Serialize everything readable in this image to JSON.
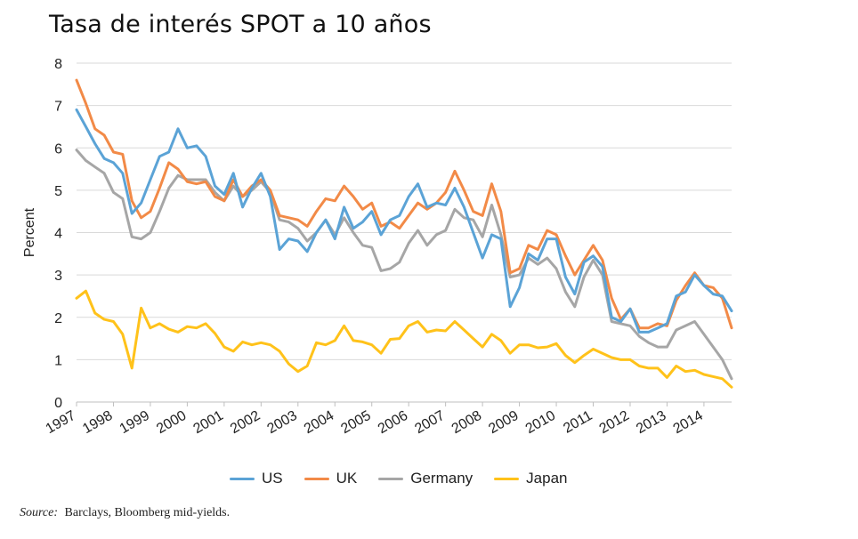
{
  "title": "Tasa de interés SPOT a 10 años",
  "source": {
    "label": "Source:",
    "text": "Barclays, Bloomberg mid-yields."
  },
  "colors": {
    "US": "#5ba3d6",
    "UK": "#f28a47",
    "Germany": "#a6a6a6",
    "Japan": "#ffc21a",
    "grid": "#d9d9d9"
  },
  "chart_data": {
    "type": "line",
    "title": "Tasa de interés SPOT a 10 años",
    "xlabel": "",
    "ylabel": "Percent",
    "ylim": [
      0,
      8
    ],
    "yticks": [
      0,
      1,
      2,
      3,
      4,
      5,
      6,
      7,
      8
    ],
    "xlim": [
      1997,
      2014.75
    ],
    "xticks": [
      "1997",
      "1998",
      "1999",
      "2000",
      "2001",
      "2002",
      "2003",
      "2004",
      "2005",
      "2006",
      "2007",
      "2008",
      "2009",
      "2010",
      "2011",
      "2012",
      "2013",
      "2014"
    ],
    "grid": true,
    "legend_position": "bottom",
    "x": [
      1997.0,
      1997.25,
      1997.5,
      1997.75,
      1998.0,
      1998.25,
      1998.5,
      1998.75,
      1999.0,
      1999.25,
      1999.5,
      1999.75,
      2000.0,
      2000.25,
      2000.5,
      2000.75,
      2001.0,
      2001.25,
      2001.5,
      2001.75,
      2002.0,
      2002.25,
      2002.5,
      2002.75,
      2003.0,
      2003.25,
      2003.5,
      2003.75,
      2004.0,
      2004.25,
      2004.5,
      2004.75,
      2005.0,
      2005.25,
      2005.5,
      2005.75,
      2006.0,
      2006.25,
      2006.5,
      2006.75,
      2007.0,
      2007.25,
      2007.5,
      2007.75,
      2008.0,
      2008.25,
      2008.5,
      2008.75,
      2009.0,
      2009.25,
      2009.5,
      2009.75,
      2010.0,
      2010.25,
      2010.5,
      2010.75,
      2011.0,
      2011.25,
      2011.5,
      2011.75,
      2012.0,
      2012.25,
      2012.5,
      2012.75,
      2013.0,
      2013.25,
      2013.5,
      2013.75,
      2014.0,
      2014.25,
      2014.5,
      2014.75
    ],
    "series": [
      {
        "name": "US",
        "values": [
          6.9,
          6.5,
          6.1,
          5.75,
          5.65,
          5.4,
          4.45,
          4.7,
          5.25,
          5.8,
          5.9,
          6.45,
          6.0,
          6.05,
          5.8,
          5.1,
          4.9,
          5.4,
          4.6,
          5.05,
          5.4,
          4.85,
          3.6,
          3.85,
          3.8,
          3.55,
          4.0,
          4.3,
          3.85,
          4.6,
          4.1,
          4.25,
          4.5,
          3.95,
          4.3,
          4.4,
          4.85,
          5.15,
          4.6,
          4.7,
          4.65,
          5.05,
          4.6,
          4.0,
          3.4,
          3.95,
          3.85,
          2.25,
          2.7,
          3.5,
          3.35,
          3.85,
          3.85,
          2.95,
          2.55,
          3.3,
          3.45,
          3.2,
          2.0,
          1.9,
          2.2,
          1.65,
          1.65,
          1.75,
          1.85,
          2.5,
          2.6,
          3.0,
          2.75,
          2.55,
          2.5,
          2.15
        ]
      },
      {
        "name": "UK",
        "values": [
          7.6,
          7.05,
          6.45,
          6.3,
          5.9,
          5.85,
          4.75,
          4.35,
          4.5,
          5.05,
          5.65,
          5.5,
          5.2,
          5.15,
          5.2,
          4.85,
          4.75,
          5.25,
          4.85,
          5.1,
          5.25,
          5.0,
          4.4,
          4.35,
          4.3,
          4.15,
          4.5,
          4.8,
          4.75,
          5.1,
          4.85,
          4.55,
          4.7,
          4.15,
          4.25,
          4.1,
          4.4,
          4.7,
          4.55,
          4.7,
          4.95,
          5.45,
          5.0,
          4.5,
          4.4,
          5.15,
          4.5,
          3.05,
          3.15,
          3.7,
          3.6,
          4.05,
          3.95,
          3.45,
          3.0,
          3.35,
          3.7,
          3.35,
          2.45,
          1.95,
          2.2,
          1.75,
          1.75,
          1.85,
          1.8,
          2.4,
          2.75,
          3.05,
          2.75,
          2.7,
          2.45,
          1.75
        ]
      },
      {
        "name": "Germany",
        "values": [
          5.95,
          5.7,
          5.55,
          5.4,
          4.95,
          4.8,
          3.9,
          3.85,
          4.0,
          4.5,
          5.05,
          5.35,
          5.25,
          5.25,
          5.25,
          4.95,
          4.75,
          5.1,
          4.85,
          5.0,
          5.2,
          4.95,
          4.3,
          4.25,
          4.1,
          3.8,
          4.0,
          4.3,
          3.95,
          4.35,
          4.0,
          3.7,
          3.65,
          3.1,
          3.15,
          3.3,
          3.75,
          4.05,
          3.7,
          3.95,
          4.05,
          4.55,
          4.35,
          4.3,
          3.9,
          4.65,
          3.95,
          2.95,
          3.0,
          3.4,
          3.25,
          3.4,
          3.15,
          2.6,
          2.25,
          2.95,
          3.35,
          3.0,
          1.9,
          1.85,
          1.8,
          1.55,
          1.4,
          1.3,
          1.3,
          1.7,
          1.8,
          1.9,
          1.6,
          1.3,
          1.0,
          0.55
        ]
      },
      {
        "name": "Japan",
        "values": [
          2.45,
          2.62,
          2.1,
          1.95,
          1.9,
          1.6,
          0.8,
          2.22,
          1.75,
          1.85,
          1.72,
          1.65,
          1.78,
          1.75,
          1.85,
          1.62,
          1.3,
          1.2,
          1.42,
          1.35,
          1.4,
          1.35,
          1.2,
          0.9,
          0.72,
          0.85,
          1.4,
          1.35,
          1.45,
          1.8,
          1.45,
          1.42,
          1.35,
          1.15,
          1.48,
          1.5,
          1.8,
          1.9,
          1.65,
          1.7,
          1.68,
          1.9,
          1.7,
          1.5,
          1.3,
          1.6,
          1.45,
          1.15,
          1.35,
          1.35,
          1.28,
          1.3,
          1.38,
          1.1,
          0.93,
          1.1,
          1.25,
          1.15,
          1.05,
          1.0,
          1.0,
          0.85,
          0.8,
          0.8,
          0.58,
          0.85,
          0.72,
          0.75,
          0.65,
          0.6,
          0.55,
          0.35
        ]
      }
    ]
  }
}
